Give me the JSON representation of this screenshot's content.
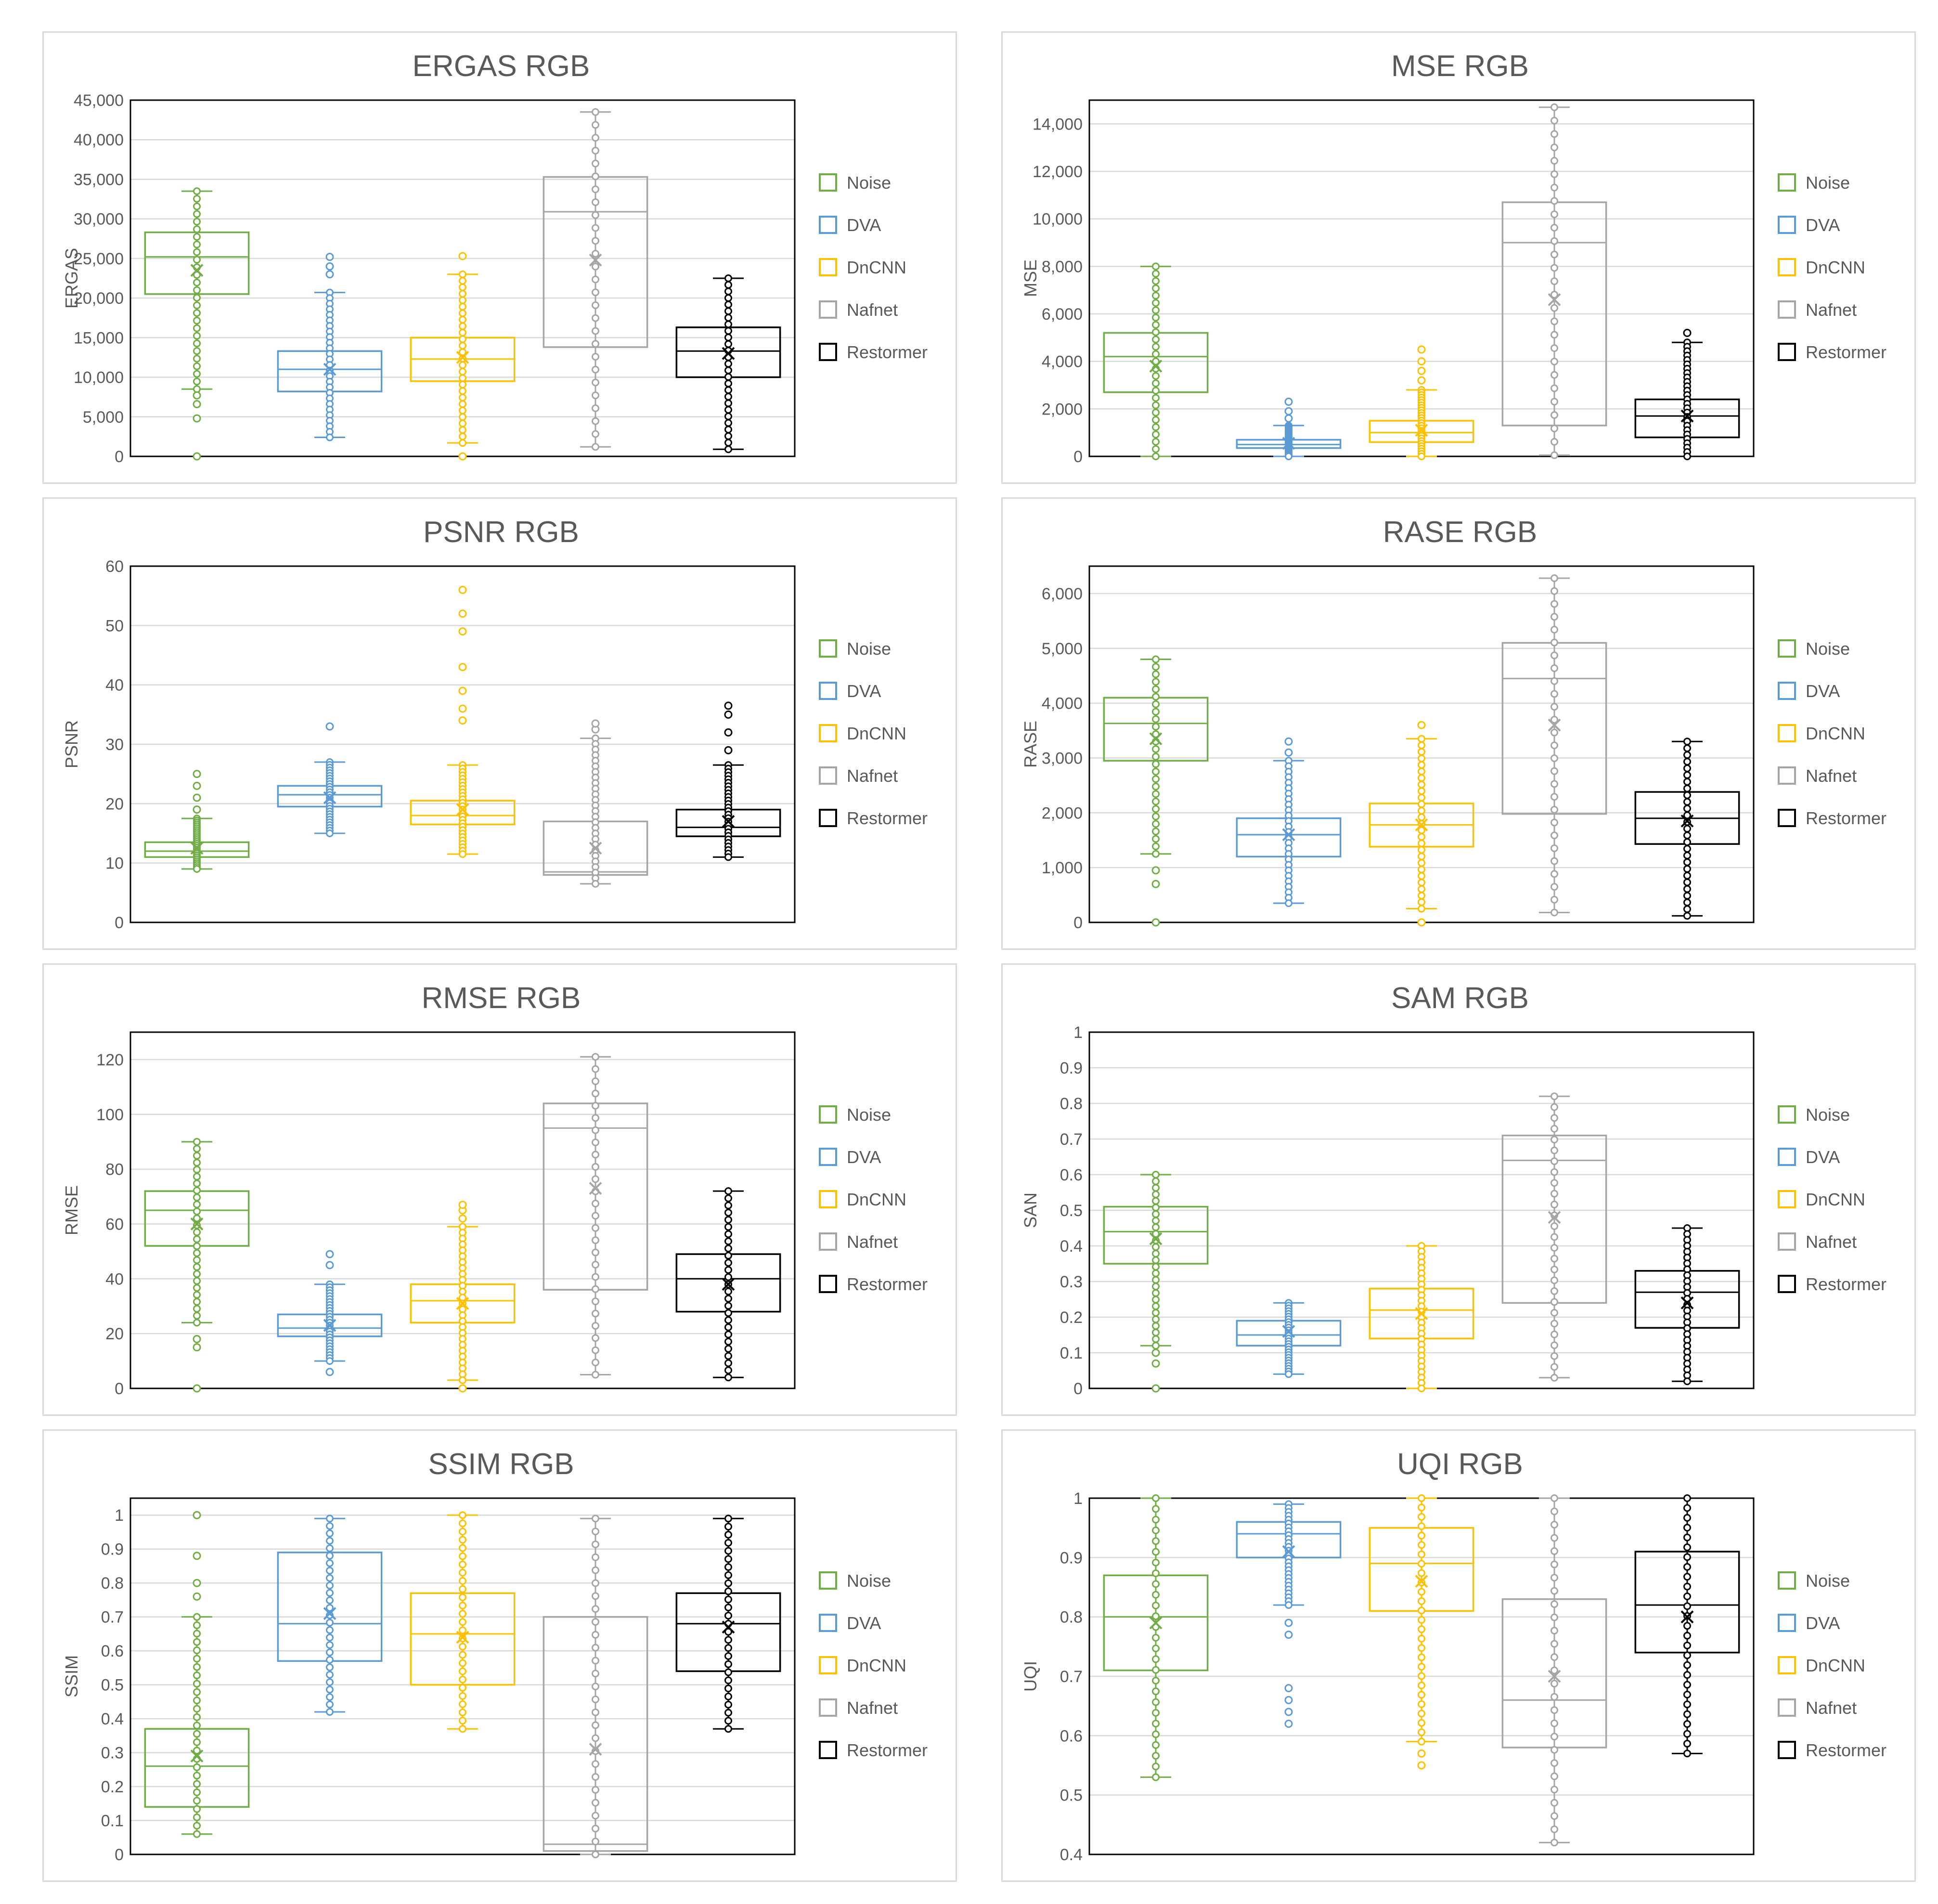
{
  "series": [
    {
      "name": "Noise",
      "color": "#70ad47"
    },
    {
      "name": "DVA",
      "color": "#5b9bd5"
    },
    {
      "name": "DnCNN",
      "color": "#ffc000"
    },
    {
      "name": "Nafnet",
      "color": "#a5a5a5"
    },
    {
      "name": "Restormer",
      "color": "#000000"
    }
  ],
  "chart_data": [
    {
      "type": "box",
      "title": "ERGAS RGB",
      "ylabel": "ERGAS",
      "ylim": [
        0,
        45000
      ],
      "yticks": [
        0,
        5000,
        10000,
        15000,
        20000,
        25000,
        30000,
        35000,
        40000,
        45000
      ],
      "tick_labels": [
        "0",
        "5,000",
        "10,000",
        "15,000",
        "20,000",
        "25,000",
        "30,000",
        "35,000",
        "40,000",
        "45,000"
      ],
      "boxes": [
        {
          "name": "Noise",
          "min": 8500,
          "q1": 20500,
          "median": 25200,
          "q3": 28300,
          "max": 33500,
          "mean": 23500,
          "outliers": [
            0,
            4800,
            6600,
            7700
          ]
        },
        {
          "name": "DVA",
          "min": 2400,
          "q1": 8200,
          "median": 11000,
          "q3": 13300,
          "max": 20700,
          "mean": 11000,
          "outliers": [
            23000,
            24000,
            25200
          ]
        },
        {
          "name": "DnCNN",
          "min": 1700,
          "q1": 9500,
          "median": 12300,
          "q3": 15000,
          "max": 23000,
          "mean": 12500,
          "outliers": [
            0,
            25300
          ]
        },
        {
          "name": "Nafnet",
          "min": 1200,
          "q1": 13800,
          "median": 30900,
          "q3": 35300,
          "max": 43500,
          "mean": 24800,
          "outliers": []
        },
        {
          "name": "Restormer",
          "min": 900,
          "q1": 10000,
          "median": 13300,
          "q3": 16300,
          "max": 22500,
          "mean": 13000,
          "outliers": []
        }
      ]
    },
    {
      "type": "box",
      "title": "MSE RGB",
      "ylabel": "MSE",
      "ylim": [
        0,
        15000
      ],
      "yticks": [
        0,
        2000,
        4000,
        6000,
        8000,
        10000,
        12000,
        14000
      ],
      "tick_labels": [
        "0",
        "2,000",
        "4,000",
        "6,000",
        "8,000",
        "10,000",
        "12,000",
        "14,000"
      ],
      "boxes": [
        {
          "name": "Noise",
          "min": 0,
          "q1": 2700,
          "median": 4200,
          "q3": 5200,
          "max": 8000,
          "mean": 3800,
          "outliers": []
        },
        {
          "name": "DVA",
          "min": 0,
          "q1": 350,
          "median": 500,
          "q3": 700,
          "max": 1300,
          "mean": 550,
          "outliers": [
            1600,
            1900,
            2300
          ]
        },
        {
          "name": "DnCNN",
          "min": 0,
          "q1": 600,
          "median": 1000,
          "q3": 1500,
          "max": 2800,
          "mean": 1100,
          "outliers": [
            3200,
            3600,
            4000,
            4500
          ]
        },
        {
          "name": "Nafnet",
          "min": 50,
          "q1": 1300,
          "median": 9000,
          "q3": 10700,
          "max": 14700,
          "mean": 6600,
          "outliers": []
        },
        {
          "name": "Restormer",
          "min": 0,
          "q1": 800,
          "median": 1700,
          "q3": 2400,
          "max": 4800,
          "mean": 1700,
          "outliers": [
            5200
          ]
        }
      ]
    },
    {
      "type": "box",
      "title": "PSNR RGB",
      "ylabel": "PSNR",
      "ylim": [
        0,
        60
      ],
      "yticks": [
        0,
        10,
        20,
        30,
        40,
        50,
        60
      ],
      "tick_labels": [
        "0",
        "10",
        "20",
        "30",
        "40",
        "50",
        "60"
      ],
      "boxes": [
        {
          "name": "Noise",
          "min": 9,
          "q1": 11,
          "median": 12,
          "q3": 13.5,
          "max": 17.5,
          "mean": 12.5,
          "outliers": [
            19,
            21,
            23,
            25
          ]
        },
        {
          "name": "DVA",
          "min": 15,
          "q1": 19.5,
          "median": 21.5,
          "q3": 23,
          "max": 27,
          "mean": 21,
          "outliers": [
            33
          ]
        },
        {
          "name": "DnCNN",
          "min": 11.5,
          "q1": 16.5,
          "median": 18,
          "q3": 20.5,
          "max": 26.5,
          "mean": 19,
          "outliers": [
            34,
            36,
            39,
            43,
            49,
            52,
            56
          ]
        },
        {
          "name": "Nafnet",
          "min": 6.5,
          "q1": 8,
          "median": 8.5,
          "q3": 17,
          "max": 31,
          "mean": 12.5,
          "outliers": [
            32.5,
            33.5
          ]
        },
        {
          "name": "Restormer",
          "min": 11,
          "q1": 14.5,
          "median": 16,
          "q3": 19,
          "max": 26.5,
          "mean": 17,
          "outliers": [
            29,
            32,
            35,
            36.5
          ]
        }
      ]
    },
    {
      "type": "box",
      "title": "RASE RGB",
      "ylabel": "RASE",
      "ylim": [
        0,
        6500
      ],
      "yticks": [
        0,
        1000,
        2000,
        3000,
        4000,
        5000,
        6000
      ],
      "tick_labels": [
        "0",
        "1,000",
        "2,000",
        "3,000",
        "4,000",
        "5,000",
        "6,000"
      ],
      "boxes": [
        {
          "name": "Noise",
          "min": 1250,
          "q1": 2950,
          "median": 3630,
          "q3": 4100,
          "max": 4800,
          "mean": 3350,
          "outliers": [
            0,
            700,
            950
          ]
        },
        {
          "name": "DVA",
          "min": 350,
          "q1": 1200,
          "median": 1600,
          "q3": 1900,
          "max": 2950,
          "mean": 1600,
          "outliers": [
            3100,
            3300
          ]
        },
        {
          "name": "DnCNN",
          "min": 250,
          "q1": 1380,
          "median": 1780,
          "q3": 2170,
          "max": 3350,
          "mean": 1780,
          "outliers": [
            0,
            3600
          ]
        },
        {
          "name": "Nafnet",
          "min": 180,
          "q1": 1980,
          "median": 4450,
          "q3": 5100,
          "max": 6280,
          "mean": 3600,
          "outliers": []
        },
        {
          "name": "Restormer",
          "min": 120,
          "q1": 1430,
          "median": 1900,
          "q3": 2380,
          "max": 3300,
          "mean": 1850,
          "outliers": []
        }
      ]
    },
    {
      "type": "box",
      "title": "RMSE RGB",
      "ylabel": "RMSE",
      "ylim": [
        0,
        130
      ],
      "yticks": [
        0,
        20,
        40,
        60,
        80,
        100,
        120
      ],
      "tick_labels": [
        "0",
        "20",
        "40",
        "60",
        "80",
        "100",
        "120"
      ],
      "boxes": [
        {
          "name": "Noise",
          "min": 24,
          "q1": 52,
          "median": 65,
          "q3": 72,
          "max": 90,
          "mean": 60,
          "outliers": [
            0,
            15,
            18
          ]
        },
        {
          "name": "DVA",
          "min": 10,
          "q1": 19,
          "median": 22,
          "q3": 27,
          "max": 38,
          "mean": 23,
          "outliers": [
            6,
            45,
            49
          ]
        },
        {
          "name": "DnCNN",
          "min": 3,
          "q1": 24,
          "median": 32,
          "q3": 38,
          "max": 59,
          "mean": 31,
          "outliers": [
            0,
            62,
            65,
            67
          ]
        },
        {
          "name": "Nafnet",
          "min": 5,
          "q1": 36,
          "median": 95,
          "q3": 104,
          "max": 121,
          "mean": 73,
          "outliers": []
        },
        {
          "name": "Restormer",
          "min": 4,
          "q1": 28,
          "median": 40,
          "q3": 49,
          "max": 72,
          "mean": 38,
          "outliers": []
        }
      ]
    },
    {
      "type": "box",
      "title": "SAM RGB",
      "ylabel": "SAN",
      "ylim": [
        0,
        1
      ],
      "yticks": [
        0,
        0.1,
        0.2,
        0.3,
        0.4,
        0.5,
        0.6,
        0.7,
        0.8,
        0.9,
        1
      ],
      "tick_labels": [
        "0",
        "0.1",
        "0.2",
        "0.3",
        "0.4",
        "0.5",
        "0.6",
        "0.7",
        "0.8",
        "0.9",
        "1"
      ],
      "boxes": [
        {
          "name": "Noise",
          "min": 0.12,
          "q1": 0.35,
          "median": 0.44,
          "q3": 0.51,
          "max": 0.6,
          "mean": 0.42,
          "outliers": [
            0,
            0.07,
            0.1
          ]
        },
        {
          "name": "DVA",
          "min": 0.04,
          "q1": 0.12,
          "median": 0.15,
          "q3": 0.19,
          "max": 0.24,
          "mean": 0.16,
          "outliers": []
        },
        {
          "name": "DnCNN",
          "min": 0,
          "q1": 0.14,
          "median": 0.22,
          "q3": 0.28,
          "max": 0.4,
          "mean": 0.21,
          "outliers": []
        },
        {
          "name": "Nafnet",
          "min": 0.03,
          "q1": 0.24,
          "median": 0.64,
          "q3": 0.71,
          "max": 0.82,
          "mean": 0.48,
          "outliers": []
        },
        {
          "name": "Restormer",
          "min": 0.02,
          "q1": 0.17,
          "median": 0.27,
          "q3": 0.33,
          "max": 0.45,
          "mean": 0.24,
          "outliers": []
        }
      ]
    },
    {
      "type": "box",
      "title": "SSIM RGB",
      "ylabel": "SSIM",
      "ylim": [
        0,
        1.05
      ],
      "yticks": [
        0,
        0.1,
        0.2,
        0.3,
        0.4,
        0.5,
        0.6,
        0.7,
        0.8,
        0.9,
        1
      ],
      "tick_labels": [
        "0",
        "0.1",
        "0.2",
        "0.3",
        "0.4",
        "0.5",
        "0.6",
        "0.7",
        "0.8",
        "0.9",
        "1"
      ],
      "boxes": [
        {
          "name": "Noise",
          "min": 0.06,
          "q1": 0.14,
          "median": 0.26,
          "q3": 0.37,
          "max": 0.7,
          "mean": 0.29,
          "outliers": [
            0.76,
            0.8,
            0.88,
            1
          ]
        },
        {
          "name": "DVA",
          "min": 0.42,
          "q1": 0.57,
          "median": 0.68,
          "q3": 0.89,
          "max": 0.99,
          "mean": 0.71,
          "outliers": []
        },
        {
          "name": "DnCNN",
          "min": 0.37,
          "q1": 0.5,
          "median": 0.65,
          "q3": 0.77,
          "max": 1,
          "mean": 0.64,
          "outliers": []
        },
        {
          "name": "Nafnet",
          "min": 0,
          "q1": 0.01,
          "median": 0.03,
          "q3": 0.7,
          "max": 0.99,
          "mean": 0.31,
          "outliers": []
        },
        {
          "name": "Restormer",
          "min": 0.37,
          "q1": 0.54,
          "median": 0.68,
          "q3": 0.77,
          "max": 0.99,
          "mean": 0.67,
          "outliers": []
        }
      ]
    },
    {
      "type": "box",
      "title": "UQI RGB",
      "ylabel": "UQI",
      "ylim": [
        0.4,
        1
      ],
      "yticks": [
        0.4,
        0.5,
        0.6,
        0.7,
        0.8,
        0.9,
        1
      ],
      "tick_labels": [
        "0.4",
        "0.5",
        "0.6",
        "0.7",
        "0.8",
        "0.9",
        "1"
      ],
      "boxes": [
        {
          "name": "Noise",
          "min": 0.53,
          "q1": 0.71,
          "median": 0.8,
          "q3": 0.87,
          "max": 1,
          "mean": 0.79,
          "outliers": []
        },
        {
          "name": "DVA",
          "min": 0.82,
          "q1": 0.9,
          "median": 0.94,
          "q3": 0.96,
          "max": 0.99,
          "mean": 0.91,
          "outliers": [
            0.62,
            0.64,
            0.66,
            0.68,
            0.77,
            0.79
          ]
        },
        {
          "name": "DnCNN",
          "min": 0.59,
          "q1": 0.81,
          "median": 0.89,
          "q3": 0.95,
          "max": 1,
          "mean": 0.86,
          "outliers": [
            0.55,
            0.57
          ]
        },
        {
          "name": "Nafnet",
          "min": 0.42,
          "q1": 0.58,
          "median": 0.66,
          "q3": 0.83,
          "max": 1,
          "mean": 0.7,
          "outliers": []
        },
        {
          "name": "Restormer",
          "min": 0.57,
          "q1": 0.74,
          "median": 0.82,
          "q3": 0.91,
          "max": 1,
          "mean": 0.8,
          "outliers": []
        }
      ]
    }
  ]
}
